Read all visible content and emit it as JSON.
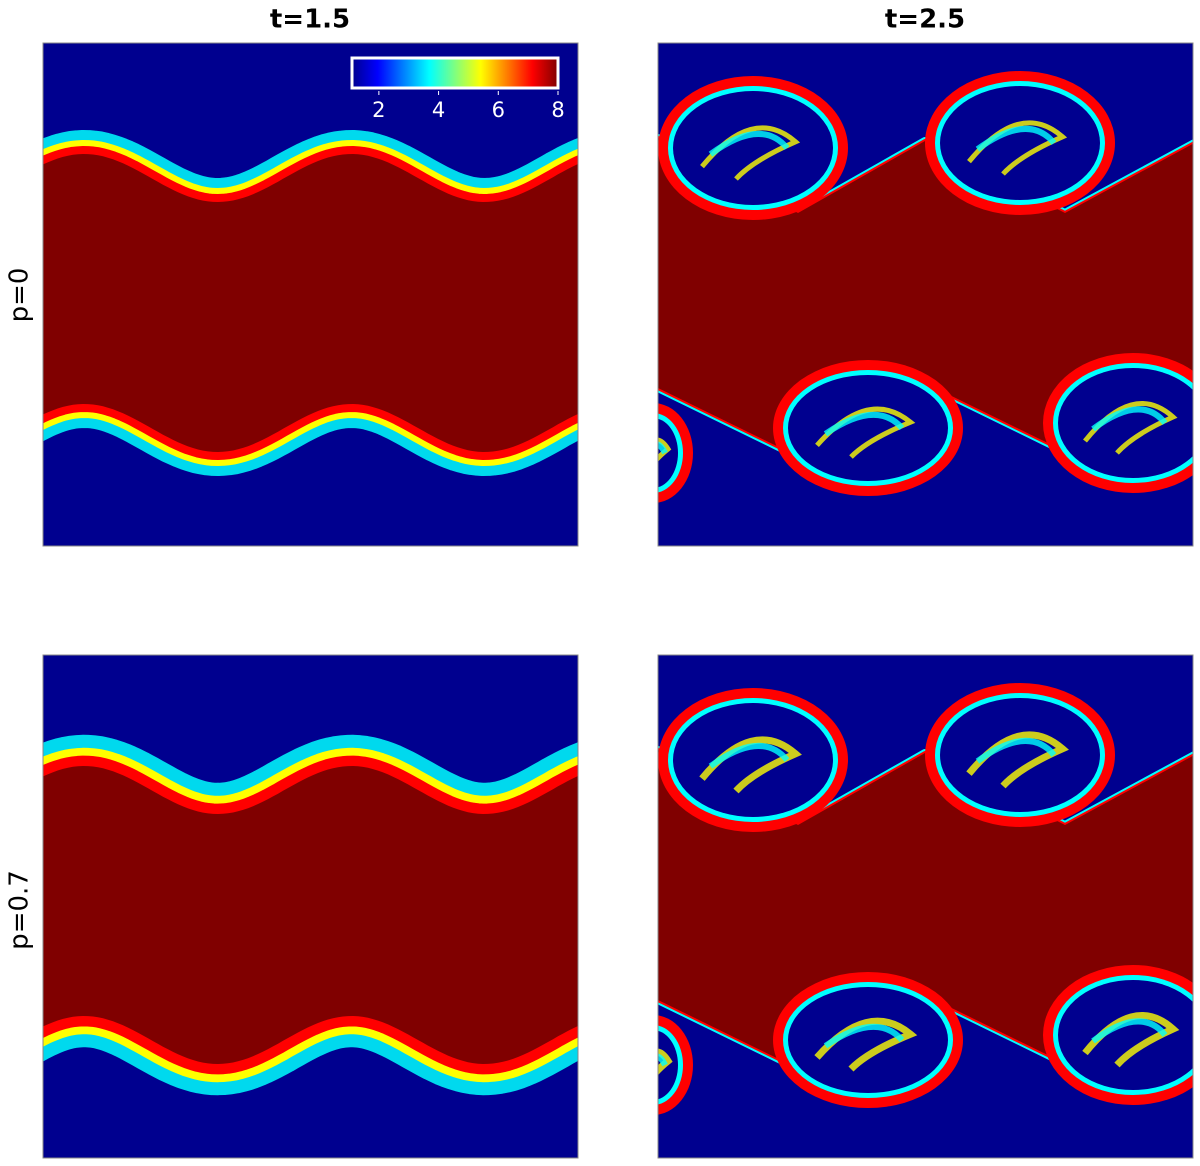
{
  "chart_data": {
    "type": "heatmap",
    "column_titles": [
      "t=1.5",
      "t=2.5"
    ],
    "row_labels": [
      "p=0",
      "p=0.7"
    ],
    "colorbar": {
      "clim": [
        1.1,
        8
      ],
      "ticks": [
        2,
        4,
        6,
        8
      ],
      "colormap": "jet"
    }
  }
}
